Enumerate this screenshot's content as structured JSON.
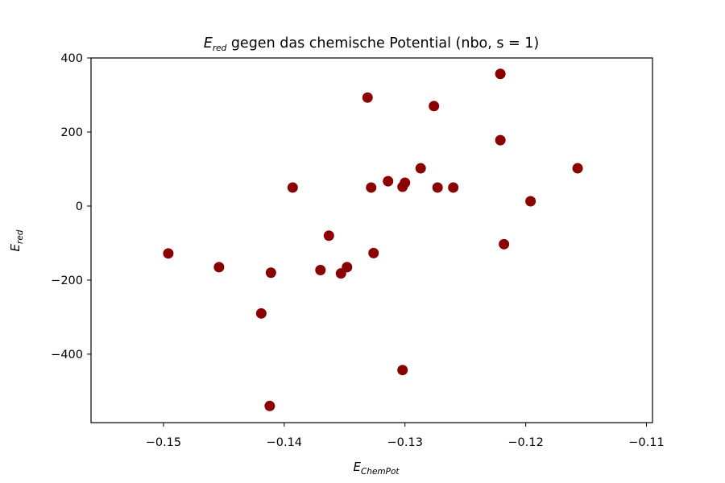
{
  "chart_data": {
    "type": "scatter",
    "title": {
      "symbol": "E",
      "subscript": "red",
      "text": " gegen das chemische Potential (nbo, s = 1)"
    },
    "xlabel": {
      "symbol": "E",
      "subscript": "ChemPot"
    },
    "ylabel": {
      "symbol": "E",
      "subscript": "red"
    },
    "xlim": [
      -0.156,
      -0.1095
    ],
    "ylim": [
      -585,
      400
    ],
    "xticks": [
      -0.15,
      -0.14,
      -0.13,
      -0.12,
      -0.11
    ],
    "xtick_labels": [
      "−0.15",
      "−0.14",
      "−0.13",
      "−0.12",
      "−0.11"
    ],
    "yticks": [
      400,
      200,
      0,
      -200,
      -400
    ],
    "ytick_labels": [
      "400",
      "200",
      "0",
      "−200",
      "−400"
    ],
    "grid": false,
    "marker_color": "#8b0000",
    "points": [
      {
        "x": -0.1496,
        "y": -128
      },
      {
        "x": -0.1454,
        "y": -165
      },
      {
        "x": -0.1419,
        "y": -290
      },
      {
        "x": -0.1412,
        "y": -540
      },
      {
        "x": -0.1411,
        "y": -180
      },
      {
        "x": -0.1393,
        "y": 50
      },
      {
        "x": -0.137,
        "y": -173
      },
      {
        "x": -0.1363,
        "y": -80
      },
      {
        "x": -0.1353,
        "y": -182
      },
      {
        "x": -0.1348,
        "y": -165
      },
      {
        "x": -0.1331,
        "y": 293
      },
      {
        "x": -0.1328,
        "y": 50
      },
      {
        "x": -0.1326,
        "y": -127
      },
      {
        "x": -0.1314,
        "y": 67
      },
      {
        "x": -0.1302,
        "y": 52
      },
      {
        "x": -0.1302,
        "y": -443
      },
      {
        "x": -0.13,
        "y": 63
      },
      {
        "x": -0.1287,
        "y": 102
      },
      {
        "x": -0.1276,
        "y": 270
      },
      {
        "x": -0.1273,
        "y": 50
      },
      {
        "x": -0.126,
        "y": 50
      },
      {
        "x": -0.1221,
        "y": 357
      },
      {
        "x": -0.1221,
        "y": 178
      },
      {
        "x": -0.1218,
        "y": -103
      },
      {
        "x": -0.1196,
        "y": 13
      },
      {
        "x": -0.1157,
        "y": 102
      }
    ]
  }
}
